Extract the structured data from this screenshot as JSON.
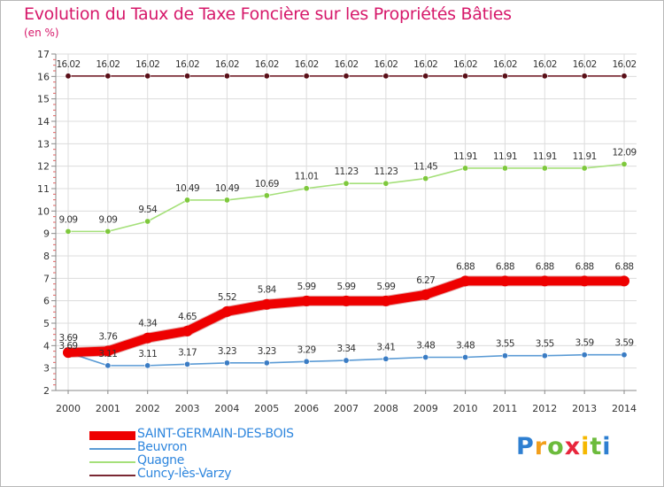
{
  "chart_data": {
    "type": "line",
    "title": "Evolution du Taux de Taxe Foncière sur les Propriétés Bâties",
    "subtitle": "(en %)",
    "x": [
      "2000",
      "2001",
      "2002",
      "2003",
      "2004",
      "2005",
      "2006",
      "2007",
      "2008",
      "2009",
      "2010",
      "2011",
      "2012",
      "2013",
      "2014"
    ],
    "ylim": [
      2,
      17
    ],
    "yticks": [
      2,
      3,
      4,
      5,
      6,
      7,
      8,
      9,
      10,
      11,
      12,
      13,
      14,
      15,
      16,
      17
    ],
    "grid": true,
    "series": [
      {
        "name": "Cuncy-lès-Varzy",
        "color": "#7a2832",
        "marker": "#5a0f18",
        "values": [
          16.02,
          16.02,
          16.02,
          16.02,
          16.02,
          16.02,
          16.02,
          16.02,
          16.02,
          16.02,
          16.02,
          16.02,
          16.02,
          16.02,
          16.02
        ],
        "labels": [
          "16.02",
          "16.02",
          "16.02",
          "16.02",
          "16.02",
          "16.02",
          "16.02",
          "16.02",
          "16.02",
          "16.02",
          "16.02",
          "16.02",
          "16.02",
          "16.02",
          "16.02"
        ]
      },
      {
        "name": "Quagne",
        "color": "#a5e07a",
        "marker": "#7ec83c",
        "values": [
          9.09,
          9.09,
          9.54,
          10.49,
          10.49,
          10.69,
          11.01,
          11.23,
          11.23,
          11.45,
          11.91,
          11.91,
          11.91,
          11.91,
          12.09
        ],
        "labels": [
          "9.09",
          "9.09",
          "9.54",
          "10.49",
          "10.49",
          "10.69",
          "11.01",
          "11.23",
          "11.23",
          "11.45",
          "11.91",
          "11.91",
          "11.91",
          "11.91",
          "12.09"
        ]
      },
      {
        "name": "Beuvron",
        "color": "#5b9bd5",
        "marker": "#3a7cc4",
        "values": [
          3.69,
          3.11,
          3.11,
          3.17,
          3.23,
          3.23,
          3.29,
          3.34,
          3.41,
          3.48,
          3.48,
          3.55,
          3.55,
          3.59,
          3.59
        ],
        "labels": [
          "3.69",
          "3.11",
          "3.11",
          "3.17",
          "3.23",
          "3.23",
          "3.29",
          "3.34",
          "3.41",
          "3.48",
          "3.48",
          "3.55",
          "3.55",
          "3.59",
          "3.59"
        ]
      },
      {
        "name": "SAINT-GERMAIN-DES-BOIS",
        "color": "#ee0000",
        "marker": "#ee0000",
        "values": [
          3.69,
          3.76,
          4.34,
          4.65,
          5.52,
          5.84,
          5.99,
          5.99,
          5.99,
          6.27,
          6.88,
          6.88,
          6.88,
          6.88,
          6.88
        ],
        "labels": [
          "3.69",
          "3.76",
          "4.34",
          "4.65",
          "5.52",
          "5.84",
          "5.99",
          "5.99",
          "5.99",
          "6.27",
          "6.88",
          "6.88",
          "6.88",
          "6.88",
          "6.88"
        ]
      }
    ],
    "legend": [
      {
        "name": "SAINT-GERMAIN-DES-BOIS",
        "color": "#ee0000",
        "style": "thick"
      },
      {
        "name": "Beuvron",
        "color": "#5b9bd5",
        "style": "thin"
      },
      {
        "name": "Quagne",
        "color": "#a5e07a",
        "style": "thin"
      },
      {
        "name": "Cuncy-lès-Varzy",
        "color": "#7a2832",
        "style": "thin"
      }
    ]
  },
  "logo": {
    "letters": [
      "P",
      "r",
      "o",
      "x",
      "i",
      "t",
      "i"
    ],
    "colors": [
      "#2e7fd1",
      "#f29f1c",
      "#6cbb3c",
      "#e8263c",
      "#f5b800",
      "#6cbb3c",
      "#2e7fd1"
    ]
  }
}
